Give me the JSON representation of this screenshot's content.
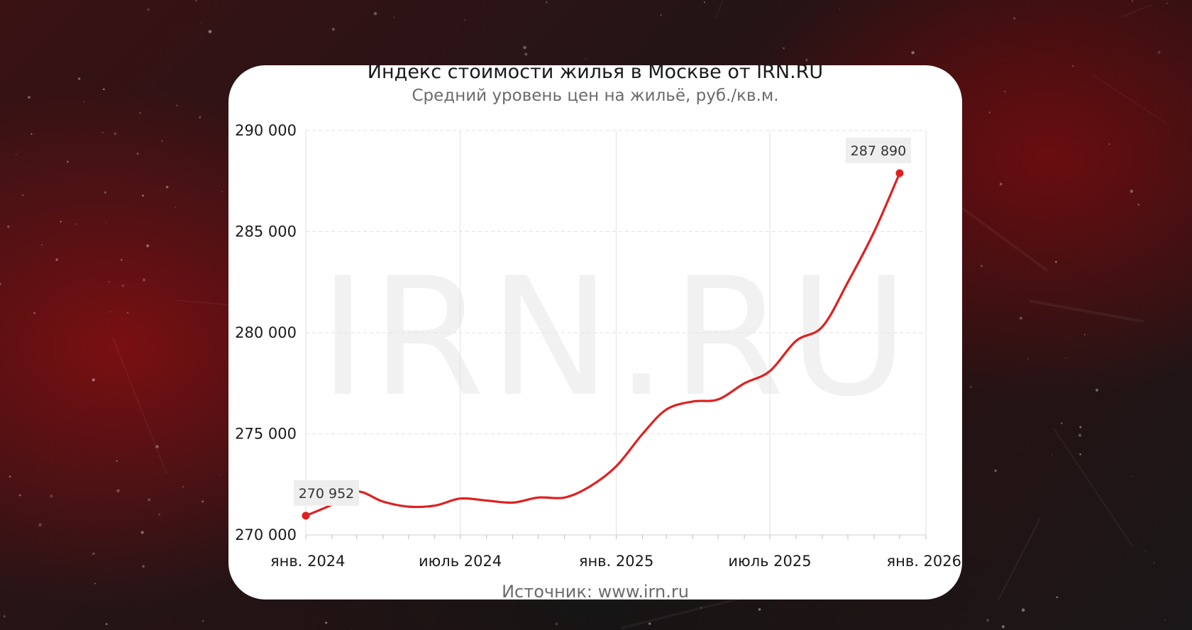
{
  "colors": {
    "line": "#e02020",
    "grid": "#e2e2e2",
    "label_box": "#eeeeee",
    "watermark": "#f1f1f1"
  },
  "footer": {
    "source": "Источник: www.irn.ru"
  },
  "chart_data": {
    "type": "line",
    "title": "Индекс стоимости жилья в Москве от IRN.RU",
    "subtitle": "Средний уровень цен на жильё, руб./кв.м.",
    "watermark": "IRN.RU",
    "xlabel": "",
    "ylabel": "",
    "ylim": [
      270000,
      290000
    ],
    "y_ticks": [
      270000,
      275000,
      280000,
      285000,
      290000
    ],
    "y_tick_labels": [
      "270 000",
      "275 000",
      "280 000",
      "285 000",
      "290 000"
    ],
    "x_ticks": [
      "2024-01-01",
      "2024-07-01",
      "2025-01-01",
      "2025-07-01",
      "2026-01-01"
    ],
    "x_tick_labels": [
      "янв. 2024",
      "июль 2024",
      "янв. 2025",
      "июль 2025",
      "янв. 2026"
    ],
    "grid": true,
    "series": [
      {
        "points": [
          [
            "2024-01-01",
            270952
          ],
          [
            "2024-02-01",
            271500
          ],
          [
            "2024-03-01",
            272150
          ],
          [
            "2024-04-01",
            271650
          ],
          [
            "2024-05-01",
            271400
          ],
          [
            "2024-06-01",
            271450
          ],
          [
            "2024-07-01",
            271800
          ],
          [
            "2024-08-01",
            271700
          ],
          [
            "2024-09-01",
            271600
          ],
          [
            "2024-10-01",
            271850
          ],
          [
            "2024-11-01",
            271850
          ],
          [
            "2024-12-01",
            272400
          ],
          [
            "2025-01-01",
            273400
          ],
          [
            "2025-02-01",
            275000
          ],
          [
            "2025-03-01",
            276200
          ],
          [
            "2025-04-01",
            276600
          ],
          [
            "2025-05-01",
            276700
          ],
          [
            "2025-06-01",
            277500
          ],
          [
            "2025-07-01",
            278100
          ],
          [
            "2025-08-01",
            279600
          ],
          [
            "2025-09-01",
            280300
          ],
          [
            "2025-10-01",
            282500
          ],
          [
            "2025-11-01",
            285000
          ],
          [
            "2025-12-01",
            287890
          ]
        ]
      }
    ],
    "annotations": [
      {
        "x": "2024-01-01",
        "y": 270952,
        "text": "270 952"
      },
      {
        "x": "2025-12-01",
        "y": 287890,
        "text": "287 890"
      }
    ]
  }
}
